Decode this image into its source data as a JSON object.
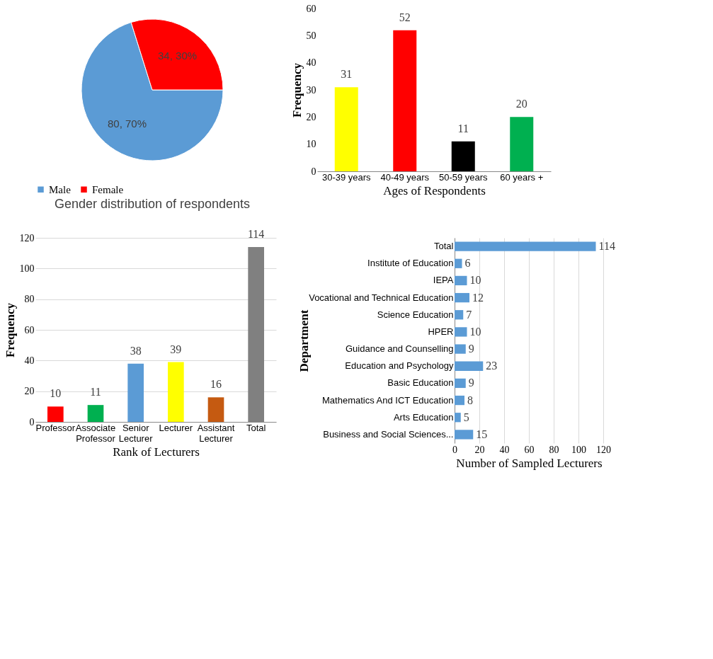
{
  "chart_data": [
    {
      "type": "pie",
      "title": "Gender distribution of respondents",
      "categories": [
        "Male",
        "Female"
      ],
      "values": [
        80,
        34
      ],
      "colors": [
        "#5b9bd5",
        "#ff0000"
      ],
      "value_labels": [
        "80, 70%",
        "34, 30%"
      ],
      "legend": "bottom"
    },
    {
      "type": "bar",
      "categories": [
        "30-39 years",
        "40-49 years",
        "50-59 years",
        "60 years +"
      ],
      "values": [
        31,
        52,
        11,
        20
      ],
      "colors": [
        "#ffff00",
        "#ff0000",
        "#000000",
        "#00b050"
      ],
      "ylim": [
        0,
        60
      ],
      "yticks": [
        0,
        10,
        20,
        30,
        40,
        50,
        60
      ],
      "ylabel": "Frequency",
      "xlabel": "Ages of Respondents",
      "data_labels": true,
      "grid": false
    },
    {
      "type": "bar",
      "categories": [
        "Professor",
        "Associate Professor",
        "Senior Lecturer",
        "Lecturer",
        "Assistant Lecturer",
        "Total"
      ],
      "values": [
        10,
        11,
        38,
        39,
        16,
        114
      ],
      "colors": [
        "#ff0000",
        "#00b050",
        "#5b9bd5",
        "#ffff00",
        "#c55a11",
        "#808080"
      ],
      "ylim": [
        0,
        120
      ],
      "yticks": [
        0,
        20,
        40,
        60,
        80,
        100,
        120
      ],
      "ylabel": "Frequency",
      "xlabel": "Rank of Lecturers",
      "data_labels": true,
      "grid": "y"
    },
    {
      "type": "bar",
      "orientation": "horizontal",
      "categories": [
        "Total",
        "Institute of Education",
        "IEPA",
        "Vocational and Technical Education",
        "Science Education",
        "HPER",
        "Guidance and Counselling",
        "Education and Psychology",
        "Basic Education",
        "Mathematics And ICT Education",
        "Arts Education",
        "Business and Social Sciences..."
      ],
      "values": [
        114,
        6,
        10,
        12,
        7,
        10,
        9,
        23,
        9,
        8,
        5,
        15
      ],
      "colors": [
        "#5b9bd5",
        "#5b9bd5",
        "#5b9bd5",
        "#5b9bd5",
        "#5b9bd5",
        "#5b9bd5",
        "#5b9bd5",
        "#5b9bd5",
        "#5b9bd5",
        "#5b9bd5",
        "#5b9bd5",
        "#5b9bd5"
      ],
      "xlim": [
        0,
        120
      ],
      "xticks": [
        0,
        20,
        40,
        60,
        80,
        100,
        120
      ],
      "xlabel": "Number of Sampled Lecturers",
      "ylabel": "Department",
      "data_labels": true,
      "grid": "x"
    }
  ]
}
